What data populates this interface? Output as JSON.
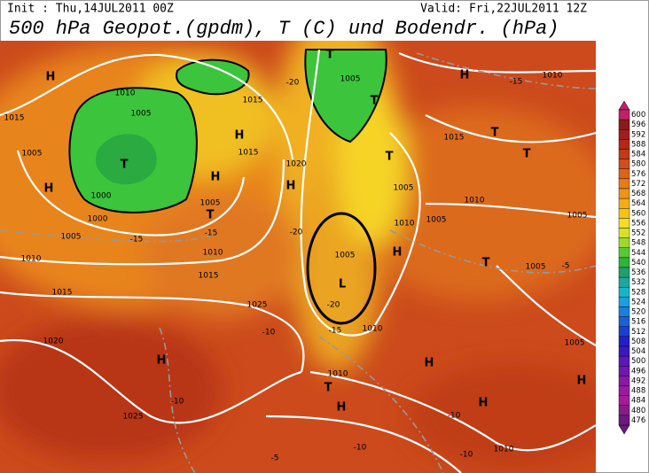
{
  "header": {
    "init": "Init : Thu,14JUL2011 00Z",
    "valid": "Valid: Fri,22JUL2011 12Z",
    "title": "500 hPa Geopot.(gpdm), T (C) und Bodendr. (hPa)"
  },
  "colorbar": {
    "labels": [
      "600",
      "596",
      "592",
      "588",
      "584",
      "580",
      "576",
      "572",
      "568",
      "564",
      "560",
      "556",
      "552",
      "548",
      "544",
      "540",
      "536",
      "532",
      "528",
      "524",
      "520",
      "516",
      "512",
      "508",
      "504",
      "500",
      "496",
      "492",
      "488",
      "484",
      "480",
      "476"
    ],
    "colors": [
      "#c0206a",
      "#8c1a1a",
      "#a01e1e",
      "#b42818",
      "#c43a18",
      "#d04e1a",
      "#dc6418",
      "#e67c18",
      "#ee9418",
      "#f4ac18",
      "#f6c418",
      "#f4dc28",
      "#d6e228",
      "#9ed82c",
      "#5cc834",
      "#2cb43c",
      "#1ea070",
      "#1aa8a0",
      "#1ab4c8",
      "#1aa0e0",
      "#1a80e0",
      "#1a60d8",
      "#1a40d0",
      "#2020c8",
      "#3a18c0",
      "#5a18b8",
      "#7018b0",
      "#8818a8",
      "#9a1aa0",
      "#a81a98",
      "#8a1a8a",
      "#6a1a80"
    ]
  },
  "map": {
    "labels": [
      "H",
      "1010",
      "1005",
      "1015",
      "T",
      "1005",
      "H",
      "1000",
      "1000",
      "1015",
      "H",
      "1015",
      "H",
      "T",
      "1005",
      "-15",
      "-15",
      "1010",
      "1015",
      "1005",
      "1010",
      "1015",
      "1020",
      "1025",
      "-10",
      "H",
      "1025",
      "-10",
      "H",
      "1020",
      "-20",
      "T",
      "1005",
      "T",
      "-20",
      "H",
      "1010",
      "-15",
      "1015",
      "T",
      "T",
      "T",
      "1005",
      "1010",
      "1010",
      "1005",
      "1005",
      "H",
      "T",
      "1005",
      "-5",
      "L",
      "1005",
      "-20",
      "-15",
      "1010",
      "1005",
      "H",
      "1010",
      "T",
      "H",
      "H",
      "-10",
      "1010",
      "-10",
      "-5",
      "-10",
      "H"
    ]
  }
}
